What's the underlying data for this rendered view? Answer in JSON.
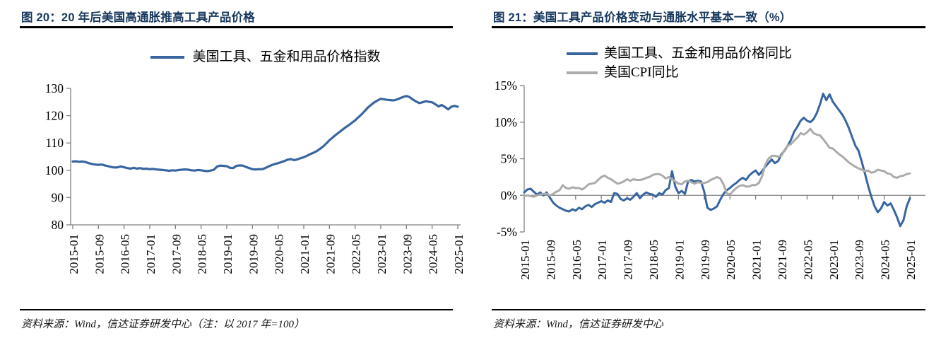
{
  "figures": [
    {
      "title": "图 20：20 年后美国高通胀推高工具产品价格",
      "source": "资料来源：Wind，信达证券研发中心（注：以 2017 年=100）"
    },
    {
      "title": "图 21：美国工具产品价格变动与通胀水平基本一致（%）",
      "source": "资料来源：Wind，信达证券研发中心"
    }
  ],
  "colors": {
    "accent_blue": "#3865A0",
    "series_gray": "#ABABAB",
    "title_navy": "#17375E",
    "axis_gray": "#808080",
    "rule_black": "#000000"
  },
  "chart_data": [
    {
      "type": "line",
      "title": "图 20：20 年后美国高通胀推高工具产品价格",
      "x_frequency": "monthly",
      "x_range": [
        "2015-01",
        "2025-01"
      ],
      "x_tick_labels": [
        "2015-01",
        "2015-09",
        "2016-05",
        "2017-01",
        "2017-09",
        "2018-05",
        "2019-01",
        "2019-09",
        "2020-05",
        "2021-01",
        "2021-09",
        "2022-05",
        "2023-01",
        "2023-09",
        "2024-05",
        "2025-01"
      ],
      "ylim": [
        80,
        130
      ],
      "y_tick_labels": [
        "130",
        "120",
        "110",
        "100",
        "90",
        "80"
      ],
      "grid": false,
      "legend_position": "top-center",
      "source": "资料来源：Wind，信达证券研发中心（注：以 2017 年=100）",
      "series": [
        {
          "name": "美国工具、五金和用品价格指数",
          "color": "#3865A0",
          "values": [
            103.2,
            103.3,
            103.1,
            103.2,
            103.0,
            102.6,
            102.3,
            102.1,
            102.0,
            102.1,
            101.8,
            101.5,
            101.2,
            101.0,
            101.1,
            101.4,
            101.1,
            100.8,
            100.6,
            100.9,
            100.6,
            100.8,
            100.5,
            100.6,
            100.4,
            100.5,
            100.3,
            100.2,
            100.1,
            100.0,
            99.8,
            100.0,
            99.9,
            100.1,
            100.2,
            100.3,
            100.2,
            100.0,
            99.9,
            100.1,
            100.0,
            99.8,
            99.7,
            99.9,
            100.2,
            101.4,
            101.7,
            101.6,
            101.5,
            100.9,
            100.8,
            101.6,
            101.8,
            101.7,
            101.2,
            100.8,
            100.4,
            100.3,
            100.4,
            100.4,
            100.8,
            101.4,
            101.9,
            102.3,
            102.6,
            103.0,
            103.4,
            103.9,
            104.1,
            103.7,
            104.0,
            104.4,
            104.8,
            105.3,
            105.9,
            106.4,
            107.0,
            107.8,
            108.7,
            109.8,
            111.0,
            112.0,
            113.0,
            113.9,
            114.8,
            115.7,
            116.5,
            117.4,
            118.3,
            119.4,
            120.5,
            121.7,
            123.0,
            124.0,
            124.9,
            125.6,
            126.2,
            126.0,
            125.8,
            125.7,
            125.6,
            125.9,
            126.4,
            126.9,
            127.2,
            126.8,
            125.9,
            125.2,
            124.6,
            124.9,
            125.3,
            125.1,
            124.9,
            124.2,
            123.4,
            123.9,
            123.2,
            122.3,
            123.3,
            123.6,
            123.3
          ]
        }
      ]
    },
    {
      "type": "line",
      "title": "图 21：美国工具产品价格变动与通胀水平基本一致（%）",
      "x_frequency": "monthly",
      "x_range": [
        "2015-01",
        "2025-01"
      ],
      "x_tick_labels": [
        "2015-01",
        "2015-09",
        "2016-05",
        "2017-01",
        "2017-09",
        "2018-05",
        "2019-01",
        "2019-09",
        "2020-05",
        "2021-01",
        "2021-09",
        "2022-05",
        "2023-01",
        "2023-09",
        "2024-05",
        "2025-01"
      ],
      "ylim": [
        -5,
        15
      ],
      "y_tick_labels": [
        "15%",
        "10%",
        "5%",
        "0%",
        "-5%"
      ],
      "grid": false,
      "legend_position": "top-center",
      "source": "资料来源：Wind，信达证券研发中心",
      "series": [
        {
          "name": "美国工具、五金和用品价格同比",
          "color": "#3865A0",
          "values": [
            0.4,
            0.8,
            0.9,
            0.5,
            0.1,
            0.4,
            0.0,
            0.4,
            -0.3,
            -1.0,
            -1.4,
            -1.7,
            -1.9,
            -2.1,
            -2.2,
            -1.9,
            -2.1,
            -1.7,
            -1.9,
            -1.5,
            -1.3,
            -1.6,
            -1.2,
            -1.0,
            -0.8,
            -1.0,
            -0.7,
            -0.9,
            0.3,
            0.2,
            -0.5,
            -0.7,
            -0.4,
            -0.6,
            -0.2,
            0.3,
            -0.4,
            0.1,
            0.4,
            0.2,
            0.1,
            -0.2,
            0.3,
            0.1,
            0.7,
            1.0,
            3.3,
            1.2,
            0.3,
            0.6,
            0.2,
            1.9,
            2.1,
            1.9,
            2.0,
            1.9,
            0.5,
            -1.7,
            -2.0,
            -1.8,
            -1.5,
            -0.6,
            0.2,
            0.7,
            1.0,
            1.4,
            1.7,
            2.1,
            2.4,
            2.1,
            2.7,
            3.1,
            3.4,
            2.8,
            3.3,
            3.9,
            4.4,
            4.9,
            4.4,
            4.7,
            5.6,
            6.1,
            6.8,
            7.6,
            8.7,
            9.4,
            10.2,
            10.6,
            10.2,
            10.0,
            10.4,
            11.2,
            12.4,
            13.9,
            13.0,
            13.8,
            12.8,
            12.2,
            11.6,
            11.0,
            10.2,
            9.2,
            8.0,
            6.8,
            6.1,
            4.6,
            3.0,
            1.3,
            -0.2,
            -1.5,
            -2.3,
            -1.8,
            -0.9,
            -1.4,
            -1.1,
            -2.0,
            -3.0,
            -4.2,
            -3.4,
            -1.5,
            -0.4
          ]
        },
        {
          "name": "美国CPI同比",
          "color": "#ABABAB",
          "values": [
            -0.1,
            0.0,
            -0.1,
            -0.2,
            0.0,
            0.1,
            0.2,
            0.2,
            0.0,
            0.2,
            0.5,
            0.7,
            1.4,
            1.0,
            0.9,
            1.1,
            1.0,
            1.0,
            0.8,
            1.1,
            1.5,
            1.6,
            1.7,
            2.1,
            2.5,
            2.7,
            2.4,
            2.2,
            1.9,
            1.6,
            1.7,
            1.9,
            2.2,
            2.0,
            2.2,
            2.1,
            2.1,
            2.2,
            2.4,
            2.5,
            2.8,
            2.9,
            2.9,
            2.7,
            2.3,
            2.5,
            2.2,
            1.9,
            1.6,
            1.5,
            1.9,
            2.0,
            1.8,
            1.6,
            1.8,
            1.7,
            1.7,
            1.8,
            2.1,
            2.3,
            2.5,
            2.3,
            1.5,
            0.3,
            0.1,
            0.6,
            1.0,
            1.3,
            1.4,
            1.2,
            1.2,
            1.4,
            1.4,
            1.7,
            2.6,
            4.2,
            5.0,
            5.4,
            5.4,
            5.3,
            5.4,
            6.2,
            6.8,
            7.0,
            7.5,
            7.9,
            8.5,
            8.3,
            8.6,
            9.1,
            8.5,
            8.3,
            8.2,
            7.7,
            7.1,
            6.5,
            6.4,
            6.0,
            5.6,
            5.3,
            4.9,
            4.5,
            4.2,
            3.9,
            3.7,
            3.5,
            3.3,
            3.4,
            3.1,
            3.2,
            3.5,
            3.4,
            3.3,
            3.0,
            2.9,
            2.5,
            2.4,
            2.6,
            2.7,
            2.9,
            3.0
          ]
        }
      ]
    }
  ]
}
